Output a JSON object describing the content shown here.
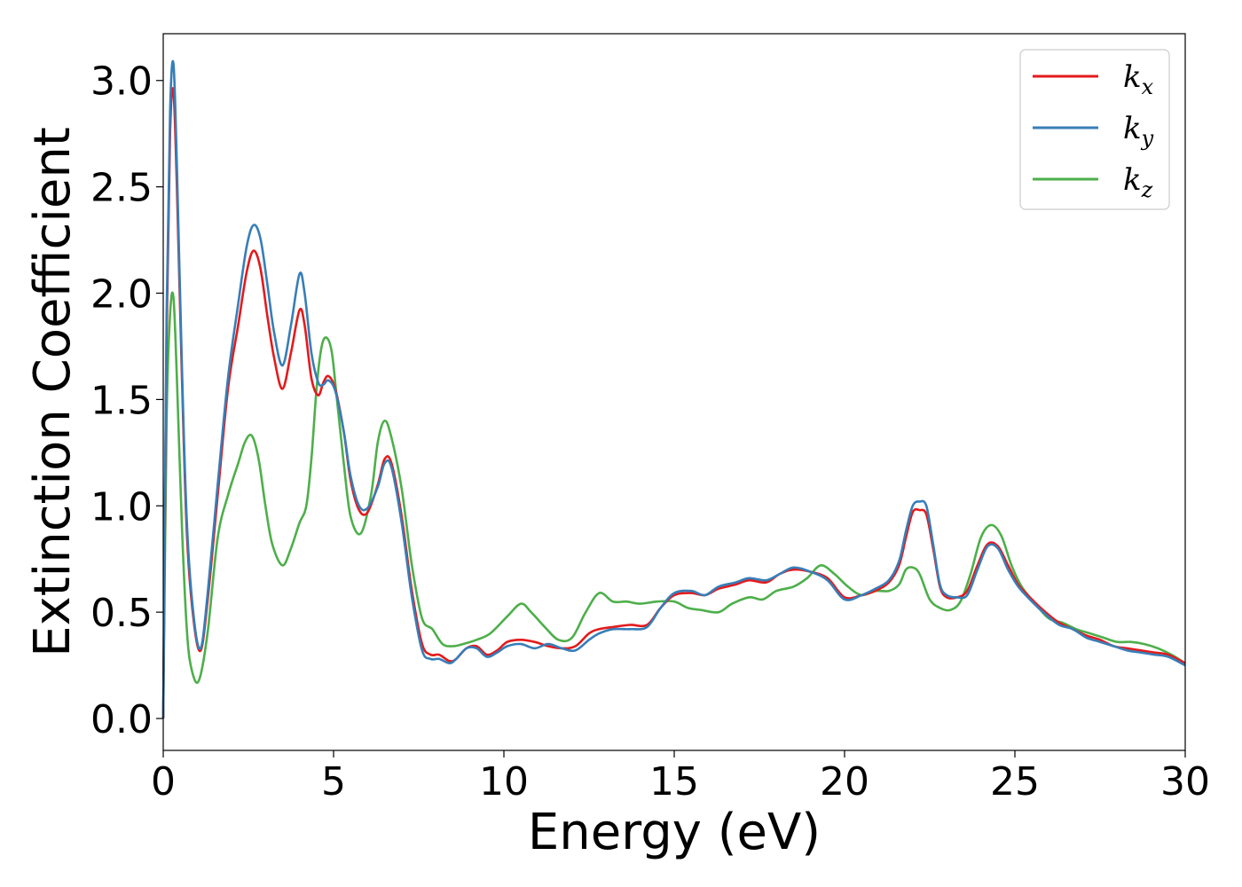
{
  "chart_data": {
    "type": "line",
    "title": "",
    "xlabel": "Energy (eV)",
    "ylabel": "Extinction Coefficient",
    "xlim": [
      0,
      30
    ],
    "ylim": [
      -0.15,
      3.22
    ],
    "xticks": [
      0,
      5,
      10,
      15,
      20,
      25,
      30
    ],
    "xtick_labels": [
      "0",
      "5",
      "10",
      "15",
      "20",
      "25",
      "30"
    ],
    "yticks": [
      0.0,
      0.5,
      1.0,
      1.5,
      2.0,
      2.5,
      3.0
    ],
    "ytick_labels": [
      "0.0",
      "0.5",
      "1.0",
      "1.5",
      "2.0",
      "2.5",
      "3.0"
    ],
    "grid": false,
    "legend_position": "top-right",
    "series": [
      {
        "name": "k_x",
        "label_main": "k",
        "label_sub": "x",
        "color": "#e41a1c",
        "x": [
          0,
          0.1,
          0.2,
          0.3,
          0.4,
          0.55,
          0.7,
          0.9,
          1.1,
          1.3,
          1.6,
          1.9,
          2.2,
          2.45,
          2.65,
          2.85,
          3.05,
          3.25,
          3.5,
          3.75,
          4.0,
          4.15,
          4.35,
          4.55,
          4.7,
          4.85,
          5.05,
          5.3,
          5.5,
          5.75,
          6.0,
          6.3,
          6.5,
          6.7,
          7.0,
          7.3,
          7.6,
          7.85,
          8.1,
          8.4,
          8.6,
          8.9,
          9.2,
          9.5,
          9.8,
          10.1,
          10.5,
          10.9,
          11.3,
          11.7,
          12.1,
          12.5,
          12.8,
          13.2,
          13.7,
          14.2,
          14.6,
          15.0,
          15.5,
          15.9,
          16.3,
          16.8,
          17.2,
          17.7,
          18.1,
          18.5,
          19.0,
          19.5,
          20.0,
          20.5,
          20.9,
          21.3,
          21.6,
          21.8,
          22.0,
          22.2,
          22.4,
          22.6,
          22.8,
          23.0,
          23.3,
          23.6,
          23.9,
          24.2,
          24.5,
          24.8,
          25.1,
          25.5,
          25.9,
          26.3,
          26.7,
          27.1,
          27.5,
          27.9,
          28.3,
          28.7,
          29.1,
          29.5,
          30.0
        ],
        "y": [
          0.0,
          1.8,
          2.75,
          2.95,
          2.5,
          1.6,
          0.85,
          0.45,
          0.32,
          0.55,
          1.05,
          1.55,
          1.85,
          2.1,
          2.2,
          2.12,
          1.9,
          1.7,
          1.55,
          1.72,
          1.92,
          1.85,
          1.6,
          1.52,
          1.58,
          1.61,
          1.55,
          1.35,
          1.12,
          0.98,
          0.97,
          1.1,
          1.22,
          1.2,
          0.95,
          0.6,
          0.35,
          0.3,
          0.3,
          0.27,
          0.28,
          0.33,
          0.34,
          0.3,
          0.32,
          0.36,
          0.37,
          0.36,
          0.34,
          0.33,
          0.34,
          0.4,
          0.42,
          0.43,
          0.44,
          0.44,
          0.52,
          0.58,
          0.59,
          0.58,
          0.61,
          0.63,
          0.65,
          0.64,
          0.68,
          0.7,
          0.69,
          0.66,
          0.57,
          0.58,
          0.6,
          0.64,
          0.72,
          0.85,
          0.97,
          0.98,
          0.96,
          0.8,
          0.62,
          0.57,
          0.57,
          0.6,
          0.72,
          0.82,
          0.81,
          0.72,
          0.63,
          0.56,
          0.5,
          0.45,
          0.42,
          0.39,
          0.37,
          0.34,
          0.33,
          0.32,
          0.31,
          0.3,
          0.26
        ]
      },
      {
        "name": "k_y",
        "label_main": "k",
        "label_sub": "y",
        "color": "#377eb8",
        "x": [
          0,
          0.1,
          0.2,
          0.3,
          0.4,
          0.55,
          0.7,
          0.9,
          1.1,
          1.3,
          1.6,
          1.9,
          2.2,
          2.45,
          2.65,
          2.85,
          3.05,
          3.25,
          3.5,
          3.75,
          4.0,
          4.15,
          4.35,
          4.55,
          4.7,
          4.85,
          5.05,
          5.3,
          5.5,
          5.75,
          6.0,
          6.3,
          6.5,
          6.7,
          7.0,
          7.3,
          7.6,
          7.85,
          8.1,
          8.4,
          8.6,
          8.9,
          9.2,
          9.5,
          9.8,
          10.1,
          10.5,
          10.9,
          11.3,
          11.7,
          12.1,
          12.5,
          12.8,
          13.2,
          13.7,
          14.2,
          14.6,
          15.0,
          15.5,
          15.9,
          16.3,
          16.8,
          17.2,
          17.7,
          18.1,
          18.5,
          19.0,
          19.5,
          20.0,
          20.5,
          20.9,
          21.3,
          21.6,
          21.8,
          22.0,
          22.2,
          22.4,
          22.6,
          22.8,
          23.0,
          23.3,
          23.6,
          23.9,
          24.2,
          24.5,
          24.8,
          25.1,
          25.5,
          25.9,
          26.3,
          26.7,
          27.1,
          27.5,
          27.9,
          28.3,
          28.7,
          29.1,
          29.5,
          30.0
        ],
        "y": [
          0.0,
          1.9,
          2.85,
          3.08,
          2.6,
          1.65,
          0.9,
          0.47,
          0.33,
          0.58,
          1.1,
          1.6,
          1.95,
          2.22,
          2.32,
          2.26,
          2.05,
          1.82,
          1.66,
          1.85,
          2.09,
          2.0,
          1.72,
          1.58,
          1.57,
          1.59,
          1.54,
          1.35,
          1.14,
          1.0,
          0.99,
          1.09,
          1.2,
          1.18,
          0.92,
          0.57,
          0.32,
          0.28,
          0.28,
          0.26,
          0.28,
          0.33,
          0.33,
          0.29,
          0.31,
          0.34,
          0.35,
          0.33,
          0.35,
          0.33,
          0.32,
          0.37,
          0.4,
          0.42,
          0.42,
          0.43,
          0.52,
          0.59,
          0.6,
          0.58,
          0.62,
          0.64,
          0.66,
          0.65,
          0.68,
          0.71,
          0.69,
          0.65,
          0.56,
          0.58,
          0.61,
          0.65,
          0.74,
          0.88,
          1.0,
          1.02,
          1.0,
          0.82,
          0.63,
          0.58,
          0.57,
          0.58,
          0.7,
          0.81,
          0.8,
          0.7,
          0.62,
          0.55,
          0.49,
          0.44,
          0.42,
          0.38,
          0.36,
          0.34,
          0.32,
          0.31,
          0.3,
          0.29,
          0.25
        ]
      },
      {
        "name": "k_z",
        "label_main": "k",
        "label_sub": "z",
        "color": "#4daf4a",
        "x": [
          0,
          0.1,
          0.2,
          0.3,
          0.4,
          0.55,
          0.7,
          0.85,
          1.05,
          1.3,
          1.6,
          1.9,
          2.2,
          2.4,
          2.6,
          2.8,
          3.0,
          3.2,
          3.5,
          3.75,
          4.0,
          4.2,
          4.35,
          4.5,
          4.65,
          4.8,
          4.95,
          5.1,
          5.3,
          5.5,
          5.8,
          6.1,
          6.3,
          6.5,
          6.7,
          7.0,
          7.3,
          7.6,
          7.9,
          8.2,
          8.5,
          8.8,
          9.2,
          9.6,
          10.1,
          10.5,
          10.8,
          11.2,
          11.6,
          12.0,
          12.4,
          12.8,
          13.2,
          13.6,
          14.0,
          14.5,
          15.0,
          15.4,
          15.8,
          16.3,
          16.7,
          17.2,
          17.6,
          18.0,
          18.5,
          18.9,
          19.3,
          19.7,
          20.1,
          20.5,
          20.9,
          21.3,
          21.6,
          21.8,
          22.0,
          22.2,
          22.5,
          22.8,
          23.1,
          23.4,
          23.7,
          24.0,
          24.3,
          24.6,
          24.9,
          25.2,
          25.6,
          26.0,
          26.4,
          26.8,
          27.2,
          27.6,
          28.0,
          28.4,
          28.8,
          29.2,
          29.6,
          30.0
        ],
        "y": [
          0.0,
          1.4,
          1.9,
          1.98,
          1.6,
          0.9,
          0.4,
          0.22,
          0.18,
          0.4,
          0.85,
          1.05,
          1.2,
          1.3,
          1.33,
          1.22,
          1.0,
          0.82,
          0.72,
          0.8,
          0.92,
          1.0,
          1.22,
          1.55,
          1.75,
          1.79,
          1.72,
          1.5,
          1.2,
          0.95,
          0.87,
          1.05,
          1.3,
          1.4,
          1.32,
          1.08,
          0.72,
          0.47,
          0.42,
          0.35,
          0.34,
          0.35,
          0.37,
          0.4,
          0.48,
          0.54,
          0.5,
          0.43,
          0.37,
          0.38,
          0.5,
          0.59,
          0.55,
          0.55,
          0.54,
          0.55,
          0.55,
          0.52,
          0.51,
          0.5,
          0.54,
          0.57,
          0.56,
          0.6,
          0.62,
          0.66,
          0.72,
          0.68,
          0.62,
          0.58,
          0.6,
          0.6,
          0.63,
          0.7,
          0.71,
          0.68,
          0.56,
          0.52,
          0.51,
          0.55,
          0.68,
          0.85,
          0.91,
          0.86,
          0.72,
          0.62,
          0.54,
          0.47,
          0.45,
          0.42,
          0.4,
          0.38,
          0.36,
          0.36,
          0.35,
          0.33,
          0.3,
          0.26
        ]
      }
    ]
  }
}
